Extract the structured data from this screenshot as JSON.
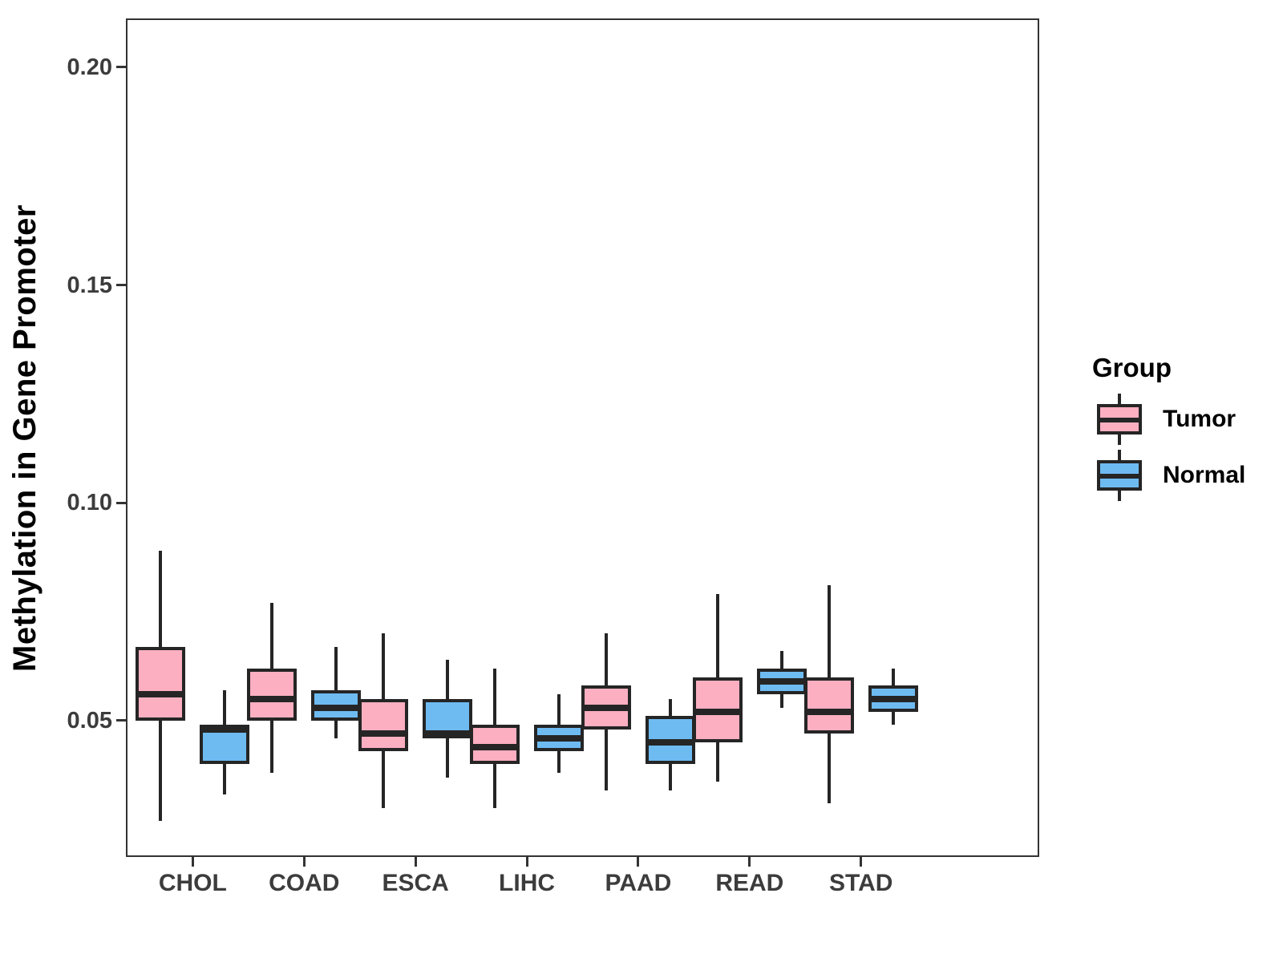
{
  "figure": {
    "background": "#ffffff"
  },
  "legend": {
    "title": "Group",
    "items": [
      {
        "label": "Tumor",
        "color": "#FBAFC1"
      },
      {
        "label": "Normal",
        "color": "#6EBBF2"
      }
    ]
  },
  "colors": {
    "tumor_fill": "#FBAFC1",
    "normal_fill": "#6EBBF2",
    "line": "#252525",
    "tick_label": "#3c3c3c",
    "panel_border": "#333333"
  },
  "chart_data": {
    "type": "boxplot",
    "title": "",
    "xlabel": "",
    "ylabel": "Methylation in Gene Promoter",
    "categories": [
      "CHOL",
      "COAD",
      "ESCA",
      "LIHC",
      "PAAD",
      "READ",
      "STAD"
    ],
    "y_ticks": [
      0.05,
      0.1,
      0.15,
      0.2
    ],
    "y_tick_labels": [
      "0.05",
      "0.10",
      "0.15",
      "0.20"
    ],
    "ylim": [
      0.0187,
      0.2112
    ],
    "grid": false,
    "legend_position": "right",
    "legend_title": "Group",
    "series": [
      {
        "name": "Tumor",
        "color": "#FBAFC1",
        "boxes": [
          {
            "category": "CHOL",
            "whisker_low": 0.027,
            "q1": 0.05,
            "median": 0.056,
            "q3": 0.067,
            "whisker_high": 0.089
          },
          {
            "category": "COAD",
            "whisker_low": 0.038,
            "q1": 0.05,
            "median": 0.055,
            "q3": 0.062,
            "whisker_high": 0.077
          },
          {
            "category": "ESCA",
            "whisker_low": 0.03,
            "q1": 0.043,
            "median": 0.047,
            "q3": 0.055,
            "whisker_high": 0.07
          },
          {
            "category": "LIHC",
            "whisker_low": 0.03,
            "q1": 0.04,
            "median": 0.044,
            "q3": 0.049,
            "whisker_high": 0.062
          },
          {
            "category": "PAAD",
            "whisker_low": 0.034,
            "q1": 0.048,
            "median": 0.053,
            "q3": 0.058,
            "whisker_high": 0.07
          },
          {
            "category": "READ",
            "whisker_low": 0.036,
            "q1": 0.045,
            "median": 0.052,
            "q3": 0.06,
            "whisker_high": 0.079
          },
          {
            "category": "STAD",
            "whisker_low": 0.031,
            "q1": 0.047,
            "median": 0.052,
            "q3": 0.06,
            "whisker_high": 0.081
          }
        ]
      },
      {
        "name": "Normal",
        "color": "#6EBBF2",
        "boxes": [
          {
            "category": "CHOL",
            "whisker_low": 0.033,
            "q1": 0.04,
            "median": 0.048,
            "q3": 0.049,
            "whisker_high": 0.057
          },
          {
            "category": "COAD",
            "whisker_low": 0.046,
            "q1": 0.05,
            "median": 0.053,
            "q3": 0.057,
            "whisker_high": 0.067
          },
          {
            "category": "ESCA",
            "whisker_low": 0.037,
            "q1": 0.046,
            "median": 0.047,
            "q3": 0.055,
            "whisker_high": 0.064
          },
          {
            "category": "LIHC",
            "whisker_low": 0.038,
            "q1": 0.043,
            "median": 0.046,
            "q3": 0.049,
            "whisker_high": 0.056
          },
          {
            "category": "PAAD",
            "whisker_low": 0.034,
            "q1": 0.04,
            "median": 0.045,
            "q3": 0.051,
            "whisker_high": 0.055
          },
          {
            "category": "READ",
            "whisker_low": 0.053,
            "q1": 0.056,
            "median": 0.059,
            "q3": 0.062,
            "whisker_high": 0.066
          },
          {
            "category": "STAD",
            "whisker_low": 0.049,
            "q1": 0.052,
            "median": 0.055,
            "q3": 0.058,
            "whisker_high": 0.062
          }
        ]
      }
    ]
  }
}
